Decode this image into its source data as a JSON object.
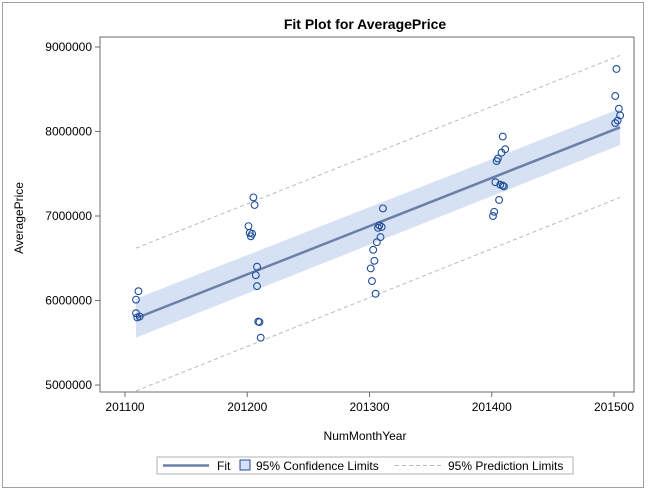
{
  "chart_data": {
    "type": "scatter",
    "title": "Fit Plot for AveragePrice",
    "xlabel": "NumMonthYear",
    "ylabel": "AveragePrice",
    "xlim": [
      201100,
      201505
    ],
    "ylim": [
      4900000,
      9100000
    ],
    "x_ticks": [
      201100,
      201200,
      201300,
      201400,
      201500
    ],
    "x_tick_labels": [
      "201100",
      "201200",
      "201300",
      "201400",
      "201500"
    ],
    "y_ticks": [
      5000000,
      6000000,
      7000000,
      8000000,
      9000000
    ],
    "y_tick_labels": [
      "5000000",
      "6000000",
      "7000000",
      "8000000",
      "9000000"
    ],
    "grid": false,
    "legend_position": "bottom",
    "colors": {
      "points": "#1f4e9a",
      "fit": "#6a80a8",
      "confidence": "#d6e1f3",
      "prediction": "#b8b8c8"
    },
    "points": [
      {
        "x": 201109,
        "y": 5850000
      },
      {
        "x": 201109,
        "y": 6010000
      },
      {
        "x": 201110,
        "y": 5800000
      },
      {
        "x": 201111,
        "y": 6110000
      },
      {
        "x": 201112,
        "y": 5810000
      },
      {
        "x": 201201,
        "y": 6880000
      },
      {
        "x": 201202,
        "y": 6800000
      },
      {
        "x": 201203,
        "y": 6760000
      },
      {
        "x": 201204,
        "y": 6790000
      },
      {
        "x": 201205,
        "y": 7220000
      },
      {
        "x": 201206,
        "y": 7130000
      },
      {
        "x": 201207,
        "y": 6300000
      },
      {
        "x": 201208,
        "y": 6170000
      },
      {
        "x": 201208,
        "y": 6400000
      },
      {
        "x": 201209,
        "y": 5750000
      },
      {
        "x": 201210,
        "y": 5745000
      },
      {
        "x": 201211,
        "y": 5560000
      },
      {
        "x": 201301,
        "y": 6380000
      },
      {
        "x": 201302,
        "y": 6230000
      },
      {
        "x": 201303,
        "y": 6600000
      },
      {
        "x": 201304,
        "y": 6470000
      },
      {
        "x": 201305,
        "y": 6080000
      },
      {
        "x": 201306,
        "y": 6690000
      },
      {
        "x": 201307,
        "y": 6860000
      },
      {
        "x": 201308,
        "y": 6890000
      },
      {
        "x": 201309,
        "y": 6750000
      },
      {
        "x": 201310,
        "y": 6870000
      },
      {
        "x": 201311,
        "y": 7090000
      },
      {
        "x": 201401,
        "y": 7000000
      },
      {
        "x": 201402,
        "y": 7050000
      },
      {
        "x": 201403,
        "y": 7400000
      },
      {
        "x": 201404,
        "y": 7650000
      },
      {
        "x": 201405,
        "y": 7680000
      },
      {
        "x": 201406,
        "y": 7190000
      },
      {
        "x": 201407,
        "y": 7370000
      },
      {
        "x": 201408,
        "y": 7750000
      },
      {
        "x": 201409,
        "y": 7360000
      },
      {
        "x": 201410,
        "y": 7350000
      },
      {
        "x": 201411,
        "y": 7790000
      },
      {
        "x": 201409,
        "y": 7940000
      },
      {
        "x": 201501,
        "y": 8420000
      },
      {
        "x": 201501,
        "y": 8100000
      },
      {
        "x": 201502,
        "y": 8740000
      },
      {
        "x": 201503,
        "y": 8130000
      },
      {
        "x": 201504,
        "y": 8270000
      },
      {
        "x": 201505,
        "y": 8190000
      }
    ],
    "series": [
      {
        "name": "Fit",
        "x": [
          201109,
          201505
        ],
        "y": [
          5790000,
          8050000
        ]
      },
      {
        "name": "95% Confidence Limits",
        "x": [
          201109,
          201505
        ],
        "lower": [
          5560000,
          7840000
        ],
        "upper": [
          6020000,
          8270000
        ]
      },
      {
        "name": "95% Prediction Limits",
        "x": [
          201109,
          201505
        ],
        "lower": [
          4930000,
          7220000
        ],
        "upper": [
          6620000,
          8900000
        ]
      }
    ],
    "legend": [
      "Fit",
      "95% Confidence Limits",
      "95% Prediction Limits"
    ]
  }
}
